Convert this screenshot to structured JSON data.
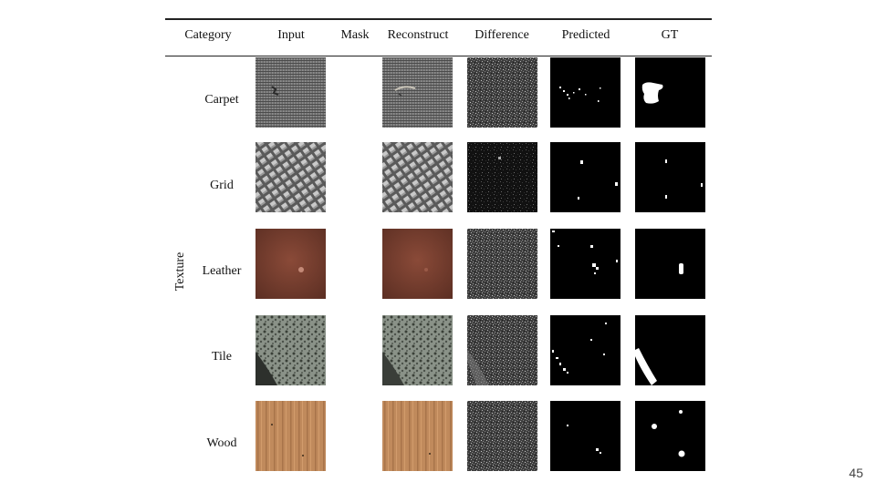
{
  "table": {
    "headers": [
      "Category",
      "Input",
      "Mask",
      "Reconstruct",
      "Difference",
      "Predicted",
      "GT"
    ],
    "group_label": "Texture",
    "rows": [
      {
        "label": "Carpet"
      },
      {
        "label": "Grid"
      },
      {
        "label": "Leather"
      },
      {
        "label": "Tile"
      },
      {
        "label": "Wood"
      }
    ]
  },
  "page_number": "45"
}
